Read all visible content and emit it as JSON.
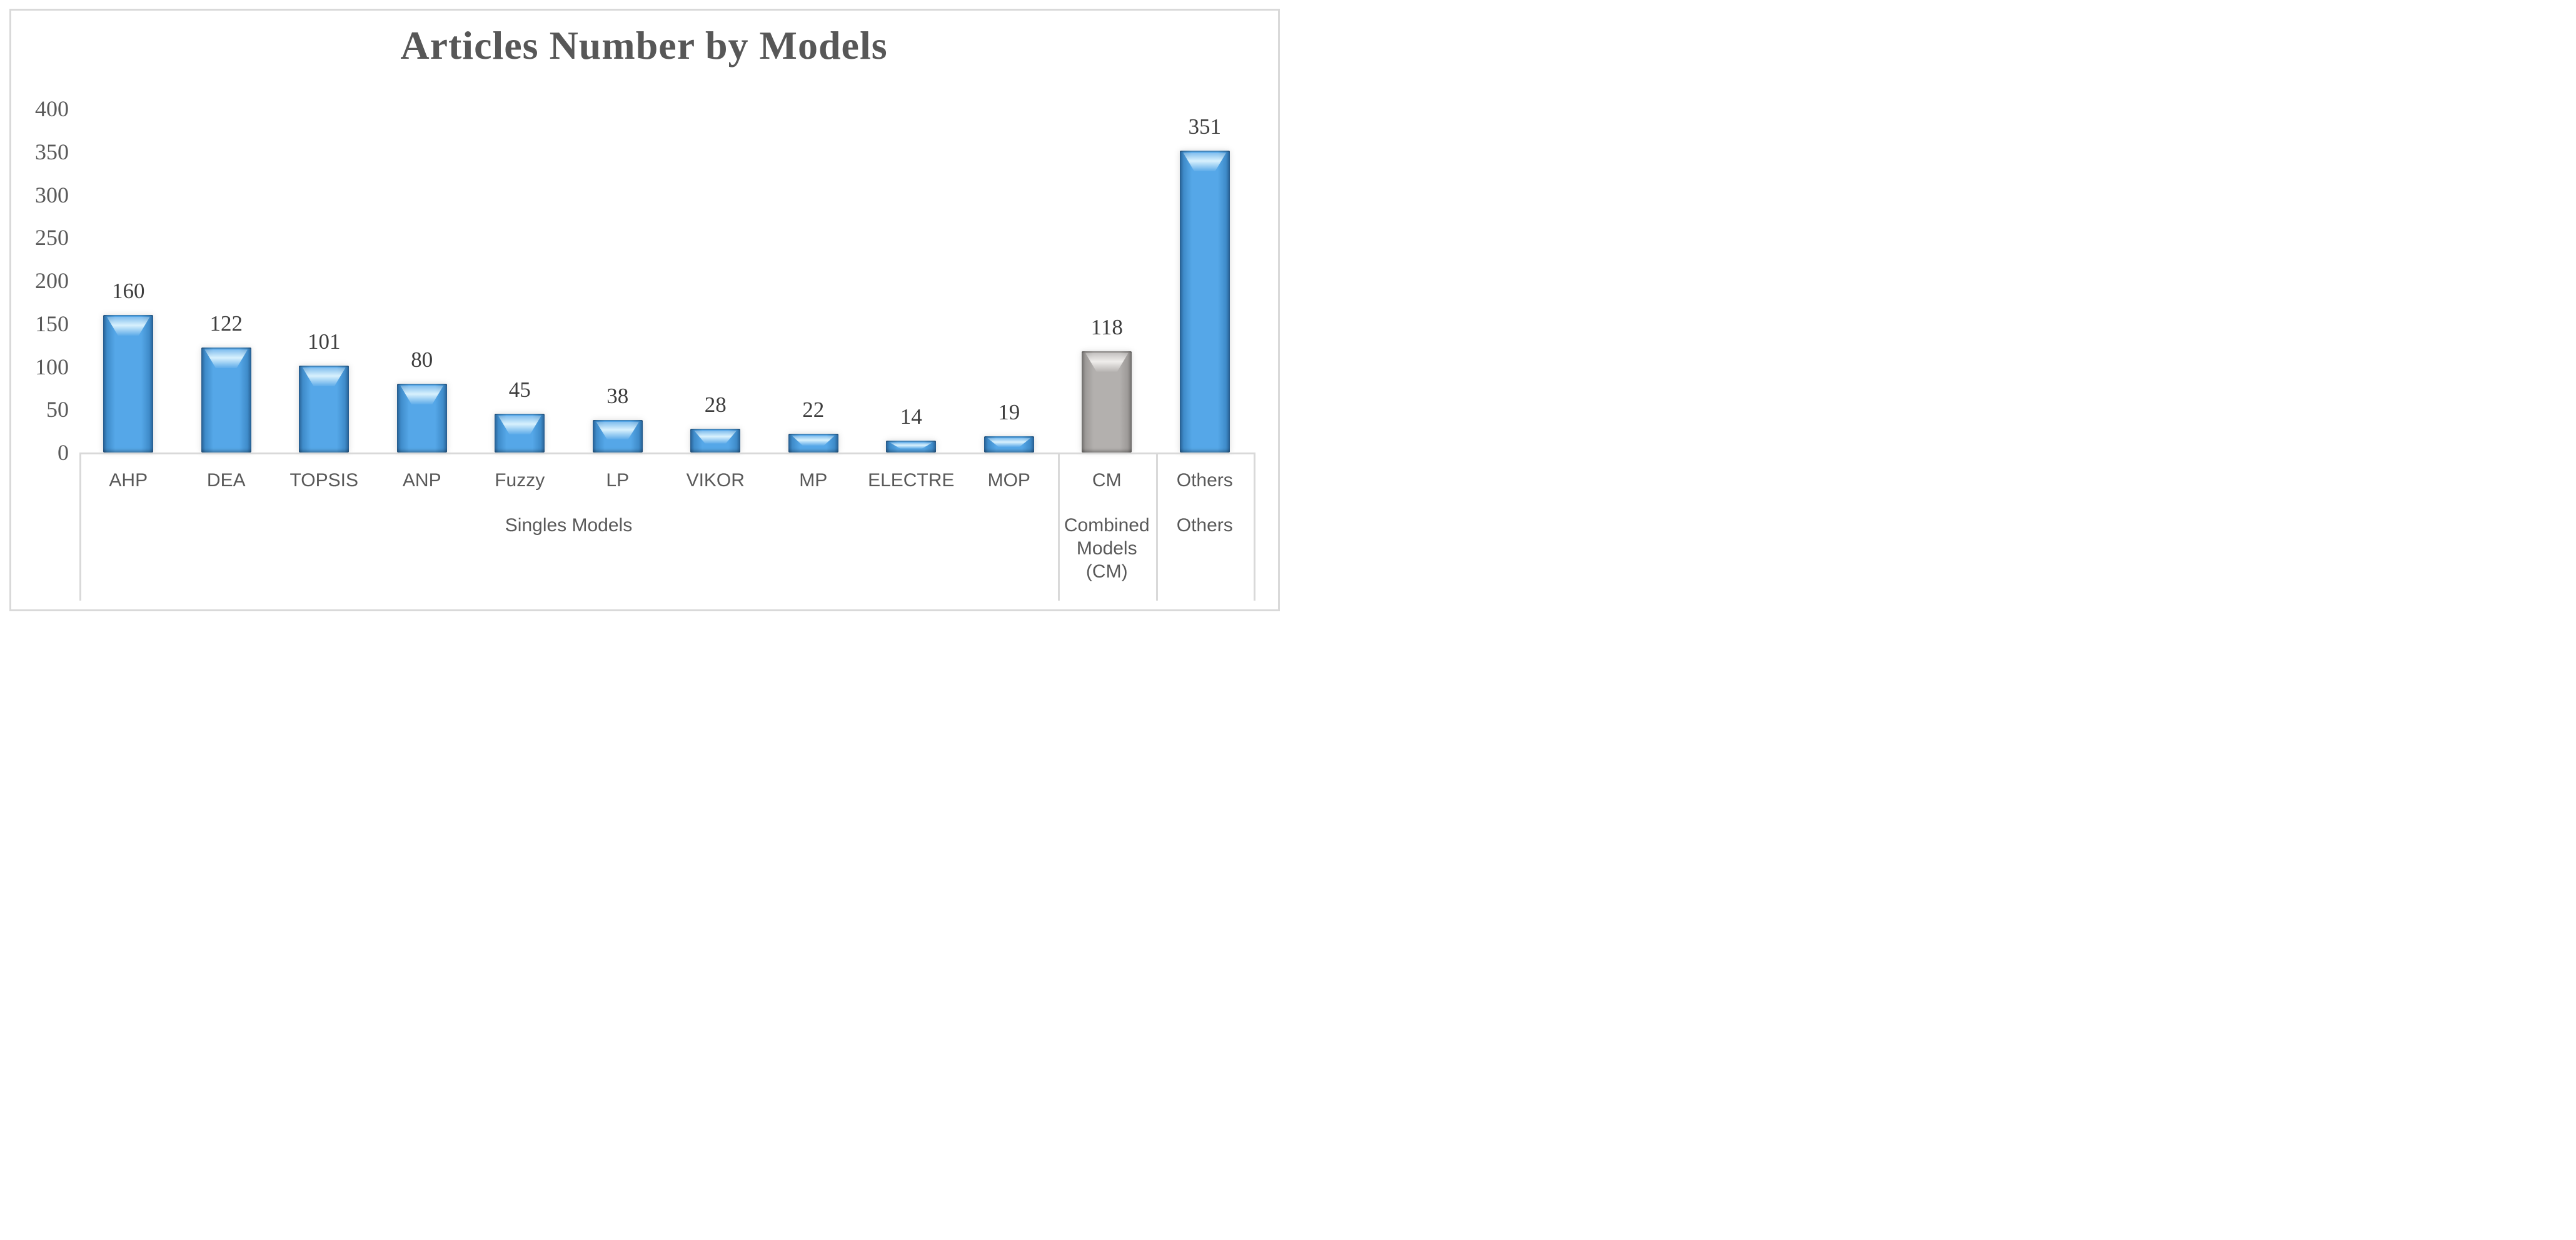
{
  "chart_data": {
    "type": "bar",
    "title": "Articles Number by Models",
    "categories": [
      "AHP",
      "DEA",
      "TOPSIS",
      "ANP",
      "Fuzzy",
      "LP",
      "VIKOR",
      "MP",
      "ELECTRE",
      "MOP",
      "CM",
      "Others"
    ],
    "values": [
      160,
      122,
      101,
      80,
      45,
      38,
      28,
      22,
      14,
      19,
      118,
      351
    ],
    "data_labels": [
      "160",
      "122",
      "101",
      "80",
      "45",
      "38",
      "28",
      "22",
      "14",
      "19",
      "118",
      "351"
    ],
    "groups": [
      {
        "label": "Singles Models",
        "start": 0,
        "end": 9
      },
      {
        "label": "Combined Models (CM)",
        "start": 10,
        "end": 10
      },
      {
        "label": "Others",
        "start": 11,
        "end": 11
      }
    ],
    "y_axis": {
      "min": 0,
      "max": 400,
      "step": 50,
      "ticks": [
        400,
        350,
        300,
        250,
        200,
        150,
        100,
        50,
        0
      ]
    },
    "grid": false,
    "legend_position": "none",
    "bar_style_by_index": [
      "blue",
      "blue",
      "blue",
      "blue",
      "blue",
      "blue",
      "blue",
      "blue",
      "blue",
      "blue",
      "gray",
      "blue"
    ],
    "colors": {
      "blue": {
        "edge": "#2a6398",
        "mid": "#3f8cca",
        "body": "#55a7e8",
        "gloss": "#d8f1fd"
      },
      "gray": {
        "edge": "#767472",
        "mid": "#9d9a98",
        "body": "#b3b0ae",
        "gloss": "#efedeb"
      },
      "frame": "#d9d9d9",
      "axis_text": "#595959",
      "label_text": "#3d3d3d"
    }
  }
}
